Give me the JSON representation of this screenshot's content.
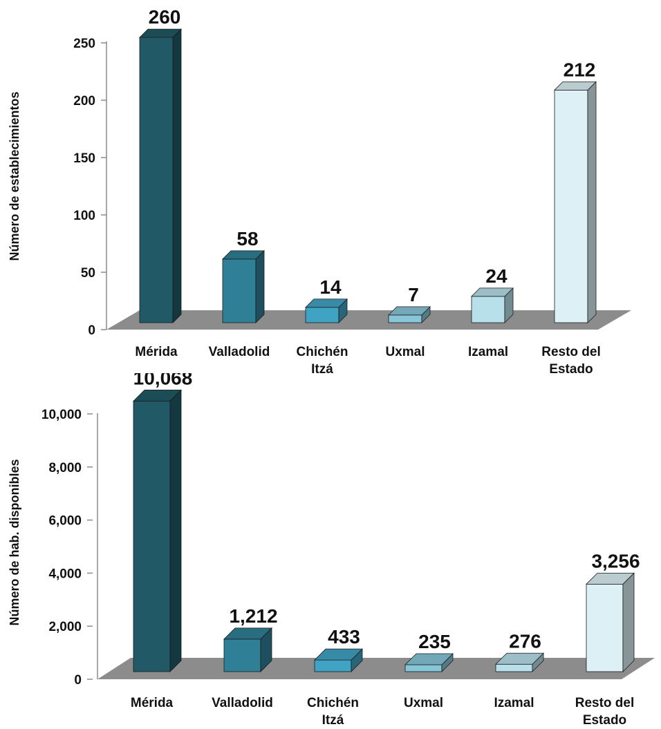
{
  "colors": {
    "floor": "#8c8c8c",
    "axis": "#8a8a8a",
    "bars": [
      "#215a66",
      "#2f8097",
      "#41a3c3",
      "#86c6d8",
      "#b8e0ea",
      "#dcf0f5"
    ]
  },
  "chart_data": [
    {
      "type": "bar",
      "style": "3d",
      "categories": [
        [
          "Mérida"
        ],
        [
          "Valladolid"
        ],
        [
          "Chichén",
          "Itzá"
        ],
        [
          "Uxmal"
        ],
        [
          "Izamal"
        ],
        [
          "Resto del",
          "Estado"
        ]
      ],
      "values": [
        260,
        58,
        14,
        7,
        24,
        212
      ],
      "value_labels": [
        "260",
        "58",
        "14",
        "7",
        "24",
        "212"
      ],
      "ylabel": "Número de establecimientos",
      "yticks": [
        "0",
        "50",
        "100",
        "150",
        "200",
        "250"
      ],
      "ytick_values": [
        0,
        50,
        100,
        150,
        200,
        250
      ],
      "ylim": [
        0,
        250
      ],
      "grid": false,
      "legend": "none"
    },
    {
      "type": "bar",
      "style": "3d",
      "categories": [
        [
          "Mérida"
        ],
        [
          "Valladolid"
        ],
        [
          "Chichén",
          "Itzá"
        ],
        [
          "Uxmal"
        ],
        [
          "Izamal"
        ],
        [
          "Resto del",
          "Estado"
        ]
      ],
      "values": [
        10068,
        1212,
        433,
        235,
        276,
        3256
      ],
      "value_labels": [
        "10,068",
        "1,212",
        "433",
        "235",
        "276",
        "3,256"
      ],
      "ylabel": "Número de hab. disponibles",
      "yticks": [
        "0",
        "2,000",
        "4,000",
        "6,000",
        "8,000",
        "10,000"
      ],
      "ytick_values": [
        0,
        2000,
        4000,
        6000,
        8000,
        10000
      ],
      "ylim": [
        0,
        10000
      ],
      "grid": false,
      "legend": "none"
    }
  ]
}
